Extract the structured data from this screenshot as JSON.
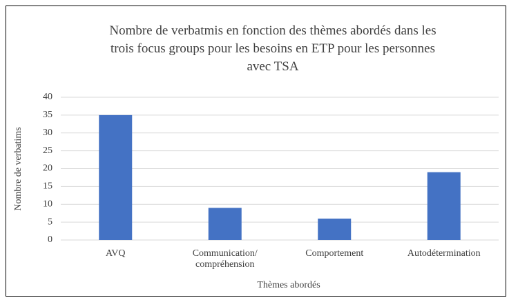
{
  "chart_data": {
    "type": "bar",
    "title": "Nombre de verbatmis en fonction des thèmes abordés dans les trois focus groups pour les besoins en ETP pour les personnes avec TSA",
    "x_label": "Thèmes abordés",
    "y_label": "Nombre de verbatims",
    "categories": [
      "AVQ",
      "Communication/ compréhension",
      "Comportement",
      "Autodétermination"
    ],
    "values": [
      35,
      9,
      6,
      19
    ],
    "color": "#4472c4",
    "ylim": [
      0,
      40
    ],
    "yticks": [
      0,
      5,
      10,
      15,
      20,
      25,
      30,
      35,
      40
    ],
    "grid": true
  }
}
